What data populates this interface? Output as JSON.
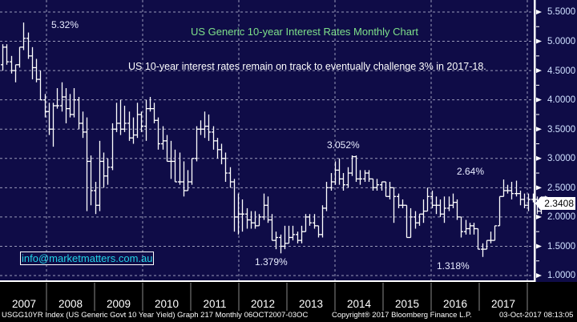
{
  "chart_data": {
    "type": "ohlc",
    "title": "US Generic 10-year Interest Rates Monthly Chart",
    "subtitle": "US 10-year interest rates remain on track to eventually challenge 3% in 2017-18.",
    "xlabel": "",
    "ylabel": "",
    "ylim": [
      1.0,
      5.5
    ],
    "grid": true,
    "y_ticks": [
      "5.5000",
      "5.0000",
      "4.5000",
      "4.0000",
      "3.5000",
      "3.0000",
      "2.5000",
      "2.0000",
      "1.5000",
      "1.0000"
    ],
    "y_tick_values": [
      5.5,
      5.0,
      4.5,
      4.0,
      3.5,
      3.0,
      2.5,
      2.0,
      1.5,
      1.0
    ],
    "x_ticks": [
      "2007",
      "2008",
      "2009",
      "2010",
      "2011",
      "2012",
      "2013",
      "2014",
      "2015",
      "2016",
      "2017"
    ],
    "last_value": "2.3408",
    "annotations": [
      {
        "text": "5.32%",
        "value": 5.32,
        "period": "2007"
      },
      {
        "text": "1.379%",
        "value": 1.379,
        "period": "2012"
      },
      {
        "text": "3.052%",
        "value": 3.052,
        "period": "2013"
      },
      {
        "text": "1.318%",
        "value": 1.318,
        "period": "2016"
      },
      {
        "text": "2.64%",
        "value": 2.64,
        "period": "2016"
      }
    ],
    "series": [
      {
        "name": "USGG10YR Index monthly",
        "start_year": 2007,
        "note": "approximate monthly closes (high/low ranges) read off bars",
        "bars": [
          [
            4.6,
            4.95,
            4.5,
            4.9
          ],
          [
            4.9,
            4.95,
            4.6,
            4.65
          ],
          [
            4.65,
            4.75,
            4.45,
            4.5
          ],
          [
            4.5,
            4.6,
            4.3,
            4.6
          ],
          [
            4.6,
            4.9,
            4.55,
            4.9
          ],
          [
            4.9,
            5.32,
            4.85,
            5.05
          ],
          [
            5.05,
            5.15,
            4.7,
            4.75
          ],
          [
            4.75,
            4.9,
            4.35,
            4.55
          ],
          [
            4.55,
            4.7,
            4.3,
            4.35
          ],
          [
            4.35,
            4.5,
            4.0,
            4.0
          ],
          [
            4.0,
            4.1,
            3.7,
            3.8
          ],
          [
            3.8,
            3.95,
            3.4,
            3.5
          ],
          [
            3.5,
            3.95,
            3.2,
            3.9
          ],
          [
            3.9,
            4.2,
            3.85,
            3.9
          ],
          [
            3.9,
            4.3,
            3.8,
            4.05
          ],
          [
            4.05,
            4.2,
            3.6,
            3.85
          ],
          [
            3.85,
            4.1,
            3.7,
            3.75
          ],
          [
            3.75,
            4.2,
            3.7,
            4.0
          ],
          [
            4.0,
            4.05,
            3.5,
            3.6
          ],
          [
            3.6,
            3.8,
            3.35,
            3.45
          ],
          [
            3.45,
            3.7,
            2.1,
            2.95
          ],
          [
            2.95,
            3.05,
            2.2,
            2.45
          ],
          [
            2.45,
            2.6,
            2.05,
            2.2
          ],
          [
            2.2,
            3.3,
            2.1,
            2.95
          ],
          [
            2.95,
            3.1,
            2.5,
            2.7
          ],
          [
            2.7,
            3.0,
            2.55,
            2.85
          ],
          [
            2.85,
            3.6,
            2.8,
            3.5
          ],
          [
            3.5,
            3.95,
            3.45,
            3.6
          ],
          [
            3.6,
            4.0,
            3.4,
            3.5
          ],
          [
            3.5,
            3.9,
            3.45,
            3.6
          ],
          [
            3.6,
            3.8,
            3.3,
            3.35
          ],
          [
            3.35,
            3.7,
            3.25,
            3.4
          ],
          [
            3.4,
            3.95,
            3.35,
            3.75
          ],
          [
            3.75,
            3.8,
            3.45,
            3.55
          ],
          [
            3.55,
            4.0,
            3.3,
            3.85
          ],
          [
            3.85,
            4.05,
            3.8,
            3.85
          ],
          [
            3.85,
            3.95,
            3.6,
            3.65
          ],
          [
            3.65,
            3.7,
            3.15,
            3.25
          ],
          [
            3.25,
            3.55,
            3.15,
            3.3
          ],
          [
            3.3,
            3.4,
            2.95,
            2.95
          ],
          [
            2.95,
            3.3,
            2.65,
            2.95
          ],
          [
            2.95,
            3.15,
            2.6,
            2.6
          ],
          [
            2.6,
            3.1,
            2.55,
            2.6
          ],
          [
            2.6,
            2.95,
            2.35,
            2.45
          ],
          [
            2.45,
            2.8,
            2.45,
            2.6
          ],
          [
            2.6,
            3.0,
            2.55,
            3.0
          ],
          [
            3.0,
            3.55,
            2.95,
            3.5
          ],
          [
            3.5,
            3.65,
            3.4,
            3.5
          ],
          [
            3.5,
            3.8,
            3.35,
            3.55
          ],
          [
            3.55,
            3.75,
            3.3,
            3.45
          ],
          [
            3.45,
            3.55,
            3.15,
            3.3
          ],
          [
            3.3,
            3.35,
            3.0,
            3.15
          ],
          [
            3.15,
            3.25,
            2.9,
            3.0
          ],
          [
            3.0,
            3.1,
            2.6,
            2.75
          ],
          [
            2.75,
            2.85,
            2.5,
            2.6
          ],
          [
            2.6,
            2.65,
            1.75,
            2.0
          ],
          [
            2.0,
            2.4,
            1.7,
            2.05
          ],
          [
            2.05,
            2.3,
            1.75,
            2.05
          ],
          [
            2.05,
            2.15,
            1.8,
            1.95
          ],
          [
            1.95,
            2.1,
            1.8,
            1.9
          ],
          [
            1.9,
            2.1,
            1.8,
            1.85
          ],
          [
            1.85,
            2.05,
            1.85,
            2.0
          ],
          [
            2.0,
            2.4,
            1.95,
            2.2
          ],
          [
            2.2,
            2.35,
            1.9,
            1.95
          ],
          [
            1.95,
            2.05,
            1.6,
            1.6
          ],
          [
            1.6,
            1.75,
            1.45,
            1.65
          ],
          [
            1.65,
            1.7,
            1.379,
            1.5
          ],
          [
            1.5,
            1.85,
            1.45,
            1.55
          ],
          [
            1.55,
            1.85,
            1.55,
            1.65
          ],
          [
            1.65,
            1.85,
            1.6,
            1.7
          ],
          [
            1.7,
            1.75,
            1.55,
            1.6
          ],
          [
            1.6,
            1.85,
            1.55,
            1.75
          ],
          [
            1.75,
            2.05,
            1.75,
            2.0
          ],
          [
            2.0,
            2.05,
            1.85,
            1.9
          ],
          [
            1.9,
            2.05,
            1.8,
            1.85
          ],
          [
            1.85,
            1.85,
            1.65,
            1.7
          ],
          [
            1.7,
            2.2,
            1.65,
            2.15
          ],
          [
            2.15,
            2.6,
            2.1,
            2.5
          ],
          [
            2.5,
            2.75,
            2.45,
            2.6
          ],
          [
            2.6,
            2.95,
            2.55,
            2.8
          ],
          [
            2.8,
            3.0,
            2.55,
            2.65
          ],
          [
            2.65,
            2.75,
            2.45,
            2.55
          ],
          [
            2.55,
            2.85,
            2.5,
            2.75
          ],
          [
            2.75,
            3.052,
            2.7,
            3.03
          ],
          [
            3.03,
            3.05,
            2.6,
            2.65
          ],
          [
            2.65,
            2.8,
            2.55,
            2.65
          ],
          [
            2.65,
            2.8,
            2.6,
            2.75
          ],
          [
            2.75,
            2.8,
            2.6,
            2.65
          ],
          [
            2.65,
            2.65,
            2.45,
            2.5
          ],
          [
            2.5,
            2.65,
            2.45,
            2.55
          ],
          [
            2.55,
            2.6,
            2.45,
            2.6
          ],
          [
            2.6,
            2.6,
            2.35,
            2.35
          ],
          [
            2.35,
            2.6,
            2.3,
            2.5
          ],
          [
            2.5,
            2.5,
            1.9,
            2.35
          ],
          [
            2.35,
            2.4,
            2.15,
            2.2
          ],
          [
            2.2,
            2.3,
            2.15,
            2.2
          ],
          [
            2.2,
            2.2,
            1.65,
            1.65
          ],
          [
            1.65,
            2.15,
            1.65,
            2.0
          ],
          [
            2.0,
            2.1,
            1.8,
            1.9
          ],
          [
            1.9,
            2.05,
            1.85,
            2.05
          ],
          [
            2.05,
            2.3,
            1.9,
            2.1
          ],
          [
            2.1,
            2.5,
            2.1,
            2.35
          ],
          [
            2.35,
            2.45,
            2.15,
            2.2
          ],
          [
            2.2,
            2.35,
            2.05,
            2.2
          ],
          [
            2.2,
            2.3,
            2.0,
            2.05
          ],
          [
            2.05,
            2.35,
            1.9,
            2.15
          ],
          [
            2.15,
            2.35,
            2.1,
            2.2
          ],
          [
            2.2,
            2.4,
            2.15,
            2.25
          ],
          [
            2.25,
            2.3,
            1.95,
            2.0
          ],
          [
            2.0,
            2.0,
            1.65,
            1.75
          ],
          [
            1.75,
            1.95,
            1.7,
            1.8
          ],
          [
            1.8,
            1.9,
            1.7,
            1.85
          ],
          [
            1.85,
            1.9,
            1.7,
            1.8
          ],
          [
            1.8,
            1.8,
            1.45,
            1.45
          ],
          [
            1.45,
            1.55,
            1.318,
            1.45
          ],
          [
            1.45,
            1.6,
            1.45,
            1.6
          ],
          [
            1.6,
            1.75,
            1.55,
            1.6
          ],
          [
            1.6,
            1.85,
            1.6,
            1.85
          ],
          [
            1.85,
            2.35,
            1.85,
            2.35
          ],
          [
            2.35,
            2.64,
            2.35,
            2.45
          ],
          [
            2.45,
            2.55,
            2.4,
            2.45
          ],
          [
            2.45,
            2.6,
            2.3,
            2.4
          ],
          [
            2.4,
            2.62,
            2.35,
            2.4
          ],
          [
            2.4,
            2.45,
            2.2,
            2.3
          ],
          [
            2.3,
            2.4,
            2.15,
            2.2
          ],
          [
            2.2,
            2.4,
            2.1,
            2.3
          ],
          [
            2.3,
            2.4,
            2.25,
            2.3
          ],
          [
            2.3,
            2.35,
            2.05,
            2.1
          ],
          [
            2.1,
            2.35,
            2.05,
            2.34
          ],
          [
            2.34,
            2.36,
            2.3,
            2.3408
          ]
        ]
      }
    ]
  },
  "email": "info@marketmatters.com.au",
  "footer": {
    "left": "USGG10YR Index (US Generic Govt 10 Year Yield) Graph 217  Monthly 06OCT2007-03OC",
    "copyright": "Copyright® 2017 Bloomberg Finance L.P.",
    "timestamp": "03-Oct-2017 08:13:05"
  },
  "colors": {
    "background": "#0f0c47",
    "bars": "#ffffff",
    "title": "#7ee08a",
    "email": "#22d3e6",
    "grid": "#9a9ab8"
  }
}
